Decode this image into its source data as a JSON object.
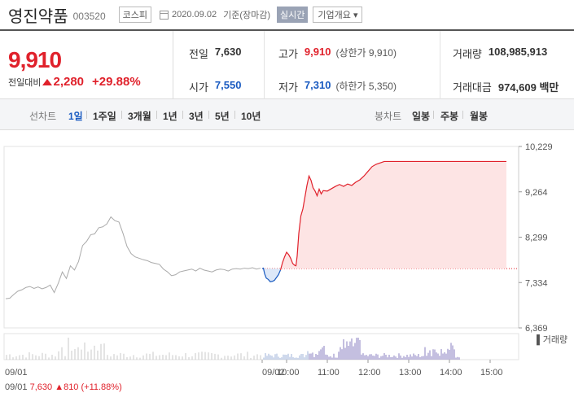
{
  "header": {
    "name": "영진약품",
    "code": "003520",
    "market": "코스피",
    "date": "2020.09.02",
    "basis": "기준(장마감)",
    "realtime": "실시간",
    "company_overview": "기업개요 ▾"
  },
  "summary": {
    "price": "9,910",
    "change_label": "전일대비",
    "change": "2,280",
    "change_pct": "+29.88%",
    "prev_label": "전일",
    "prev": "7,630",
    "high_label": "고가",
    "high": "9,910",
    "high_note": "(상한가 9,910)",
    "volume_label": "거래량",
    "volume": "108,985,913",
    "open_label": "시가",
    "open": "7,550",
    "low_label": "저가",
    "low": "7,310",
    "low_note": "(하한가 5,350)",
    "amount_label": "거래대금",
    "amount": "974,609 백만"
  },
  "toolbar": {
    "line_label": "선차트",
    "line_periods": [
      "1일",
      "1주일",
      "3개월",
      "1년",
      "3년",
      "5년",
      "10년"
    ],
    "candle_label": "봉차트",
    "candle_periods": [
      "일봉",
      "주봉",
      "월봉"
    ]
  },
  "chart_data": {
    "type": "line",
    "title": "",
    "ylim": [
      6369,
      10229
    ],
    "y_ticks": [
      "10,229",
      "9,264",
      "8,299",
      "7,334",
      "6,369"
    ],
    "y_tick_values": [
      10229,
      9264,
      8299,
      7334,
      6369
    ],
    "prev_close": 7630,
    "x_ticks": [
      "10:00",
      "11:00",
      "12:00",
      "13:00",
      "14:00",
      "15:00"
    ],
    "prev_day": {
      "label": "09/01",
      "values": [
        6990,
        7000,
        7080,
        7150,
        7180,
        7230,
        7250,
        7210,
        7240,
        7200,
        7230,
        7280,
        7120,
        7320,
        7560,
        7420,
        7690,
        7600,
        7780,
        8120,
        8210,
        8350,
        8370,
        8500,
        8520,
        8580,
        8730,
        8650,
        8620,
        8380,
        8100,
        7950,
        7880,
        7850,
        7820,
        7800,
        7760,
        7740,
        7720,
        7620,
        7560,
        7480,
        7500,
        7560,
        7580,
        7600,
        7620,
        7580,
        7640,
        7600,
        7580,
        7560,
        7600,
        7620,
        7610,
        7580,
        7620,
        7630,
        7620,
        7640,
        7630,
        7650,
        7620,
        7640
      ]
    },
    "today": {
      "label": "09/02",
      "series": [
        {
          "x": 0,
          "y": 7630
        },
        {
          "x": 0.03,
          "y": 7640
        },
        {
          "x": 0.06,
          "y": 7520
        },
        {
          "x": 0.1,
          "y": 7430
        },
        {
          "x": 0.15,
          "y": 7400
        },
        {
          "x": 0.2,
          "y": 7350
        },
        {
          "x": 0.25,
          "y": 7360
        },
        {
          "x": 0.3,
          "y": 7380
        },
        {
          "x": 0.35,
          "y": 7440
        },
        {
          "x": 0.4,
          "y": 7500
        },
        {
          "x": 0.45,
          "y": 7600
        },
        {
          "x": 0.5,
          "y": 7760
        },
        {
          "x": 0.55,
          "y": 7880
        },
        {
          "x": 0.6,
          "y": 7980
        },
        {
          "x": 0.65,
          "y": 7930
        },
        {
          "x": 0.7,
          "y": 7850
        },
        {
          "x": 0.75,
          "y": 7740
        },
        {
          "x": 0.8,
          "y": 7700
        },
        {
          "x": 0.83,
          "y": 7690
        },
        {
          "x": 0.86,
          "y": 7900
        },
        {
          "x": 0.9,
          "y": 8380
        },
        {
          "x": 0.95,
          "y": 8750
        },
        {
          "x": 1.0,
          "y": 8900
        },
        {
          "x": 1.1,
          "y": 9400
        },
        {
          "x": 1.15,
          "y": 9600
        },
        {
          "x": 1.2,
          "y": 9510
        },
        {
          "x": 1.25,
          "y": 9350
        },
        {
          "x": 1.3,
          "y": 9280
        },
        {
          "x": 1.35,
          "y": 9180
        },
        {
          "x": 1.4,
          "y": 9320
        },
        {
          "x": 1.45,
          "y": 9220
        },
        {
          "x": 1.5,
          "y": 9290
        },
        {
          "x": 1.6,
          "y": 9280
        },
        {
          "x": 1.7,
          "y": 9330
        },
        {
          "x": 1.8,
          "y": 9380
        },
        {
          "x": 1.9,
          "y": 9420
        },
        {
          "x": 2.0,
          "y": 9380
        },
        {
          "x": 2.1,
          "y": 9430
        },
        {
          "x": 2.2,
          "y": 9400
        },
        {
          "x": 2.3,
          "y": 9470
        },
        {
          "x": 2.4,
          "y": 9520
        },
        {
          "x": 2.5,
          "y": 9600
        },
        {
          "x": 2.6,
          "y": 9700
        },
        {
          "x": 2.7,
          "y": 9800
        },
        {
          "x": 2.8,
          "y": 9850
        },
        {
          "x": 2.9,
          "y": 9880
        },
        {
          "x": 3.0,
          "y": 9910
        },
        {
          "x": 6.0,
          "y": 9910
        }
      ],
      "x_ticks_hours": [
        0.6,
        1.6,
        2.6,
        3.6,
        4.6,
        5.6
      ]
    },
    "volume_label": "거래량",
    "footer": {
      "date": "09/01",
      "price": "7,630",
      "change": "810",
      "pct": "(+11.88%)"
    },
    "colors": {
      "up": "#e0212b",
      "down": "#1a5bc1",
      "prev": "#aaaaaa",
      "up_fill": "#fde4e4",
      "down_fill": "#dde8f8"
    }
  }
}
